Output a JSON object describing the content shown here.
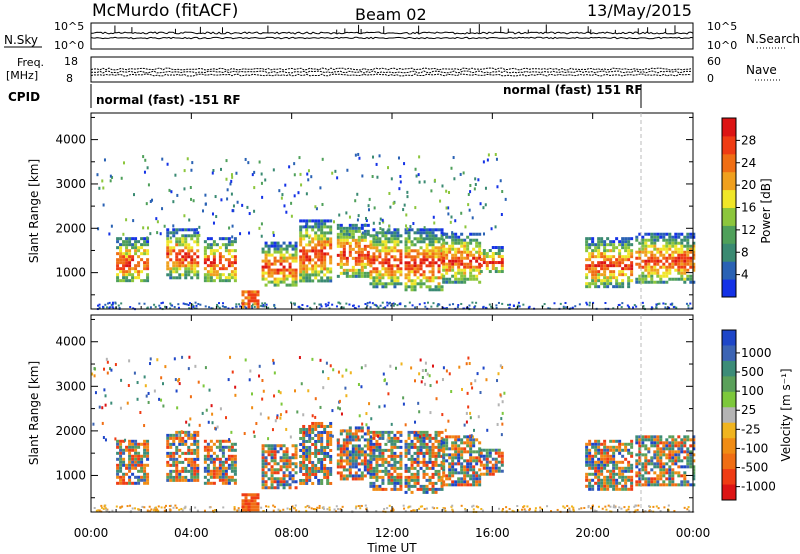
{
  "header": {
    "title": "McMurdo (fitACF)",
    "beam": "Beam 02",
    "date": "13/May/2015"
  },
  "noise_panel": {
    "left_label": "N.Sky",
    "right_label": "N.Search",
    "left_ticks": [
      "10^5",
      "10^0"
    ],
    "right_ticks": [
      "10^5",
      "10^0"
    ]
  },
  "freq_panel": {
    "left_label_line1": "Freq.",
    "left_label_line2": "[MHz]",
    "left_ticks": [
      "18",
      "8"
    ],
    "right_ticks": [
      "60",
      "0"
    ],
    "right_label": "Nave"
  },
  "cpid_panel": {
    "label": "CPID",
    "segment1": "normal (fast) -151 RF",
    "segment2": "normal (fast) 151 RF"
  },
  "x_axis": {
    "label": "Time UT",
    "ticks": [
      "00:00",
      "04:00",
      "08:00",
      "12:00",
      "16:00",
      "20:00",
      "00:00"
    ]
  },
  "chart_data": [
    {
      "type": "heatmap",
      "panel": "power",
      "ylabel": "Slant Range [km]",
      "xlim_hours": [
        0,
        24
      ],
      "ylim_km": [
        180,
        4600
      ],
      "yticks": [
        "1000",
        "2000",
        "3000",
        "4000"
      ],
      "colorbar": {
        "label": "Power [dB]",
        "range": [
          0,
          32
        ],
        "ticks": [
          "4",
          "8",
          "12",
          "16",
          "20",
          "24",
          "28"
        ],
        "colors": [
          "#1432e6",
          "#2a62b4",
          "#3a8a72",
          "#4fa05a",
          "#8cc63c",
          "#f0e628",
          "#f0a01e",
          "#f06e14",
          "#ef3c14",
          "#dc1414"
        ]
      }
    },
    {
      "type": "heatmap",
      "panel": "velocity",
      "ylabel": "Slant Range [km]",
      "xlim_hours": [
        0,
        24
      ],
      "ylim_km": [
        180,
        4600
      ],
      "yticks": [
        "1000",
        "2000",
        "3000",
        "4000"
      ],
      "colorbar": {
        "label": "Velocity [m s⁻¹]",
        "ticks": [
          "1000",
          "500",
          "100",
          "25",
          "-25",
          "-100",
          "-500",
          "-1000"
        ],
        "colors": [
          "#1e46c8",
          "#3c64b4",
          "#3c8c78",
          "#5aa05a",
          "#7dc83c",
          "#b4b4b4",
          "#f0b41e",
          "#f08c14",
          "#f06e14",
          "#ef3c14",
          "#dc1414"
        ]
      }
    }
  ]
}
